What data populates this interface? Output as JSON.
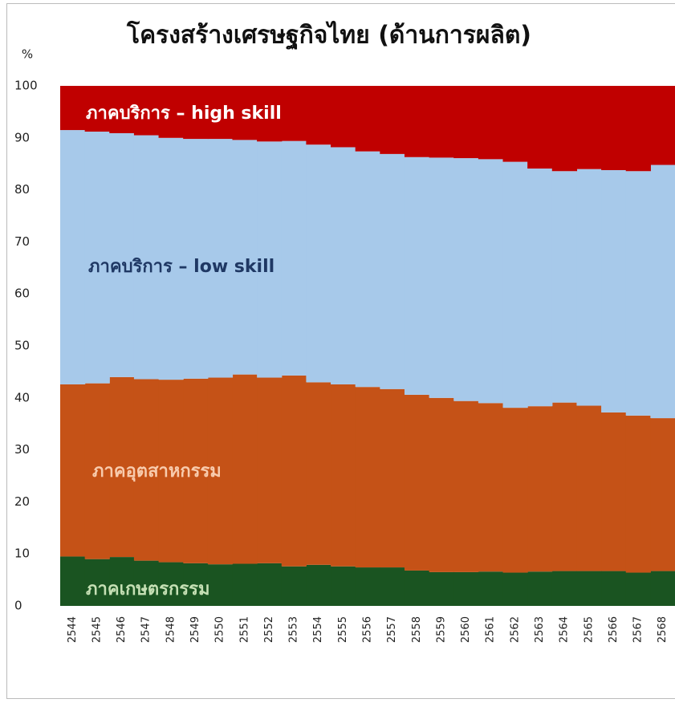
{
  "chart_data": {
    "type": "stacked-area",
    "title": "โครงสร้างเศรษฐกิจไทย (ด้านการผลิต)",
    "y_label": "%",
    "categories": [
      "2544",
      "2545",
      "2546",
      "2547",
      "2548",
      "2549",
      "2550",
      "2551",
      "2552",
      "2553",
      "2554",
      "2555",
      "2556",
      "2557",
      "2558",
      "2559",
      "2560",
      "2561",
      "2562",
      "2563",
      "2564",
      "2565",
      "2566",
      "2567",
      "2568"
    ],
    "series": [
      {
        "name": "ภาคเกษตรกรรม",
        "color": "#1a5421",
        "label_color": "#c5e0b4",
        "values": [
          9.5,
          9.0,
          9.4,
          8.7,
          8.4,
          8.2,
          8.0,
          8.1,
          8.2,
          7.6,
          7.9,
          7.6,
          7.4,
          7.4,
          6.8,
          6.5,
          6.5,
          6.6,
          6.4,
          6.6,
          6.7,
          6.7,
          6.7,
          6.4,
          6.7
        ]
      },
      {
        "name": "ภาคอุตสาหกรรม",
        "color": "#c55217",
        "label_color": "#f8cbad",
        "values": [
          33.1,
          33.8,
          34.6,
          34.9,
          35.1,
          35.5,
          35.9,
          36.4,
          35.7,
          36.7,
          35.1,
          35.0,
          34.7,
          34.3,
          33.8,
          33.5,
          32.9,
          32.4,
          31.7,
          31.8,
          32.4,
          31.8,
          30.5,
          30.2,
          29.4
        ]
      },
      {
        "name": "ภาคบริการ – low skill",
        "color": "#a7c9ea",
        "label_color": "#1f3864",
        "values": [
          48.9,
          48.4,
          46.9,
          46.9,
          46.5,
          46.1,
          45.9,
          45.1,
          45.4,
          45.1,
          45.7,
          45.6,
          45.3,
          45.2,
          45.7,
          46.2,
          46.7,
          46.9,
          47.3,
          45.7,
          44.5,
          45.5,
          46.6,
          47.0,
          48.7
        ]
      },
      {
        "name": "ภาคบริการ – high skill",
        "color": "#c00000",
        "label_color": "#ffffff",
        "values": [
          8.5,
          8.8,
          9.1,
          9.5,
          10.0,
          10.2,
          10.2,
          10.4,
          10.7,
          10.6,
          11.3,
          11.8,
          12.6,
          13.1,
          13.7,
          13.8,
          13.9,
          14.1,
          14.6,
          15.9,
          16.4,
          16.0,
          16.2,
          16.4,
          15.2
        ]
      }
    ],
    "ylim": [
      0,
      100
    ],
    "yticks": [
      0,
      10,
      20,
      30,
      40,
      50,
      60,
      70,
      80,
      90,
      100
    ],
    "grid": false
  }
}
